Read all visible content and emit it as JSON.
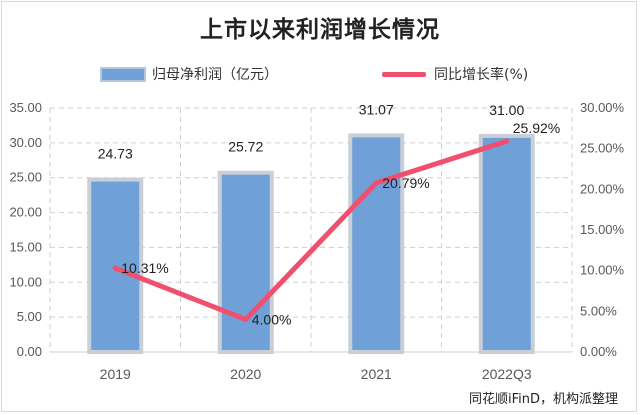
{
  "title": "上市以来利润增长情况",
  "source": "同花顺iFinD，机构派整理",
  "legend": {
    "bar_label": "归母净利润（亿元）",
    "line_label": "同比增长率(%)"
  },
  "colors": {
    "bar": "#6fa0d8",
    "bar_border": "#c9cfd6",
    "line": "#f0506e",
    "grid": "#cfcfcf"
  },
  "chart_data": {
    "type": "bar",
    "title": "上市以来利润增长情况",
    "categories": [
      "2019",
      "2020",
      "2021",
      "2022Q3"
    ],
    "series": [
      {
        "name": "归母净利润（亿元）",
        "type": "bar",
        "axis": "left",
        "values": [
          24.73,
          25.72,
          31.07,
          31.0
        ],
        "labels": [
          "24.73",
          "25.72",
          "31.07",
          "31.00"
        ]
      },
      {
        "name": "同比增长率(%)",
        "type": "line",
        "axis": "right",
        "values": [
          10.31,
          4.0,
          20.79,
          25.92
        ],
        "labels": [
          "10.31%",
          "4.00%",
          "20.79%",
          "25.92%"
        ]
      }
    ],
    "y_left": {
      "min": 0,
      "max": 35,
      "step": 5,
      "ticks": [
        "0.00",
        "5.00",
        "10.00",
        "15.00",
        "20.00",
        "25.00",
        "30.00",
        "35.00"
      ]
    },
    "y_right": {
      "min": 0,
      "max": 30,
      "step": 5,
      "ticks": [
        "0.00%",
        "5.00%",
        "10.00%",
        "15.00%",
        "20.00%",
        "25.00%",
        "30.00%"
      ]
    },
    "grid": true,
    "legend_position": "top"
  }
}
